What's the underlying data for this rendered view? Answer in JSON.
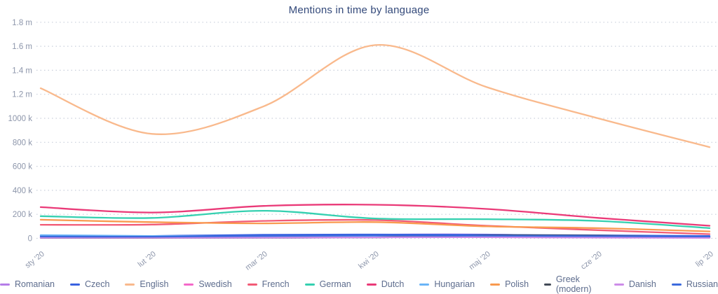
{
  "title": "Mentions in time by language",
  "chart_data": {
    "type": "line",
    "title": "Mentions in time by language",
    "x": [
      "sty '20",
      "lut '20",
      "mar '20",
      "kwi '20",
      "maj '20",
      "cze '20",
      "lip '20"
    ],
    "y_ticks": [
      "1.8 m",
      "1.6 m",
      "1.4 m",
      "1.2 m",
      "1000 k",
      "800 k",
      "600 k",
      "400 k",
      "200 k",
      "0"
    ],
    "y_tick_values": [
      1800000,
      1600000,
      1400000,
      1200000,
      1000000,
      800000,
      600000,
      400000,
      200000,
      0
    ],
    "ylim": [
      0,
      1800000
    ],
    "grid": "horizontal-dotted",
    "legend_position": "bottom",
    "series": [
      {
        "name": "Romanian",
        "color": "#b57de8",
        "values": [
          8000,
          7000,
          12000,
          30000,
          32000,
          14000,
          7000
        ]
      },
      {
        "name": "Czech",
        "color": "#3a62e0",
        "values": [
          22000,
          20000,
          30000,
          32000,
          30000,
          25000,
          20000
        ]
      },
      {
        "name": "English",
        "color": "#f9b98c",
        "values": [
          1250000,
          870000,
          1100000,
          1610000,
          1260000,
          1000000,
          760000
        ]
      },
      {
        "name": "Swedish",
        "color": "#f469c9",
        "values": [
          10000,
          9000,
          10000,
          12000,
          10000,
          8000,
          6000
        ]
      },
      {
        "name": "French",
        "color": "#f25b76",
        "values": [
          113000,
          115000,
          145000,
          152000,
          105000,
          68000,
          35000
        ]
      },
      {
        "name": "German",
        "color": "#35d0b0",
        "values": [
          185000,
          170000,
          230000,
          165000,
          160000,
          145000,
          85000
        ]
      },
      {
        "name": "Dutch",
        "color": "#ea3a78",
        "values": [
          260000,
          215000,
          270000,
          280000,
          245000,
          170000,
          105000
        ]
      },
      {
        "name": "Hungarian",
        "color": "#6ab4f7",
        "values": [
          27000,
          20000,
          15000,
          13000,
          12000,
          11000,
          9000
        ]
      },
      {
        "name": "Polish",
        "color": "#f99a4f",
        "values": [
          155000,
          135000,
          125000,
          135000,
          100000,
          85000,
          58000
        ]
      },
      {
        "name": "Greek (modern)",
        "color": "#434a57",
        "values": [
          4000,
          4000,
          5000,
          8000,
          25000,
          22000,
          10000
        ]
      },
      {
        "name": "Danish",
        "color": "#cd8ce8",
        "values": [
          5000,
          5000,
          6000,
          8000,
          10000,
          6000,
          4000
        ]
      },
      {
        "name": "Russian",
        "color": "#3c6bdd",
        "values": [
          15000,
          14000,
          20000,
          24000,
          22000,
          18000,
          15000
        ]
      }
    ]
  }
}
